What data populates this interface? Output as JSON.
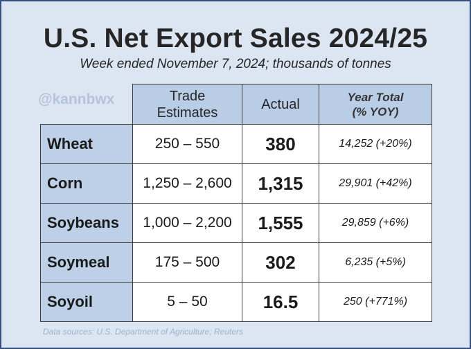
{
  "title": "U.S. Net Export Sales 2024/25",
  "subtitle": "Week ended November 7, 2024; thousands of tonnes",
  "handle": "@kannbwx",
  "headers": {
    "trade_line1": "Trade",
    "trade_line2": "Estimates",
    "actual": "Actual",
    "year_line1": "Year Total",
    "year_line2": "(% YOY)"
  },
  "source": "Data sources: U.S. Department of Agriculture; Reuters",
  "chart_data": {
    "type": "table",
    "title": "U.S. Net Export Sales 2024/25",
    "subtitle": "Week ended November 7, 2024; thousands of tonnes",
    "columns": [
      "",
      "Trade Estimates",
      "Actual",
      "Year Total (% YOY)"
    ],
    "rows": [
      {
        "crop": "Wheat",
        "trade_estimates": "250 – 550",
        "actual": "380",
        "year_total": "14,252 (+20%)"
      },
      {
        "crop": "Corn",
        "trade_estimates": "1,250 – 2,600",
        "actual": "1,315",
        "year_total": "29,901 (+42%)"
      },
      {
        "crop": "Soybeans",
        "trade_estimates": "1,000 – 2,200",
        "actual": "1,555",
        "year_total": "29,859 (+6%)"
      },
      {
        "crop": "Soymeal",
        "trade_estimates": "175 – 500",
        "actual": "302",
        "year_total": "6,235 (+5%)"
      },
      {
        "crop": "Soyoil",
        "trade_estimates": "5 – 50",
        "actual": "16.5",
        "year_total": "250 (+771%)"
      }
    ]
  }
}
